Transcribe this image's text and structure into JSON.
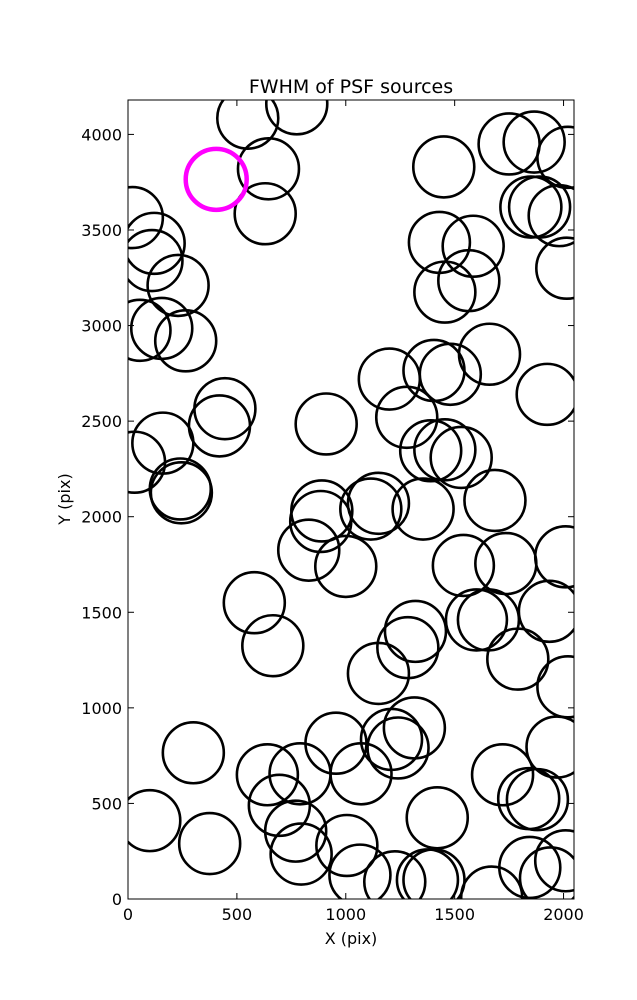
{
  "chart_data": {
    "type": "scatter",
    "marker": "open-circle",
    "title": "FWHM of PSF sources",
    "xlabel": "X (pix)",
    "ylabel": "Y (pix)",
    "xlim": [
      0,
      2048
    ],
    "ylim": [
      0,
      4180
    ],
    "xticks": [
      "0",
      "500",
      "1000",
      "1500",
      "2000"
    ],
    "yticks": [
      "0",
      "500",
      "1000",
      "1500",
      "2000",
      "2500",
      "3000",
      "3500",
      "4000"
    ],
    "grid": false,
    "colors": {
      "default": "#000000",
      "highlight": "#ff00ff"
    },
    "marker_radius_pix": 140,
    "highlighted_point": {
      "x": 405,
      "y": 3765
    },
    "points": [
      [
        550,
        4085
      ],
      [
        775,
        4160
      ],
      [
        645,
        3820
      ],
      [
        630,
        3585
      ],
      [
        1450,
        3830
      ],
      [
        1750,
        3950
      ],
      [
        1865,
        3960
      ],
      [
        2020,
        3880
      ],
      [
        1850,
        3620
      ],
      [
        1890,
        3620
      ],
      [
        1980,
        3575
      ],
      [
        20,
        3565
      ],
      [
        120,
        3430
      ],
      [
        110,
        3340
      ],
      [
        230,
        3210
      ],
      [
        1430,
        3435
      ],
      [
        1585,
        3415
      ],
      [
        1565,
        3235
      ],
      [
        1455,
        3175
      ],
      [
        2015,
        3300
      ],
      [
        55,
        2975
      ],
      [
        155,
        2985
      ],
      [
        265,
        2920
      ],
      [
        1200,
        2720
      ],
      [
        1405,
        2765
      ],
      [
        1480,
        2745
      ],
      [
        1660,
        2850
      ],
      [
        445,
        2565
      ],
      [
        420,
        2475
      ],
      [
        160,
        2385
      ],
      [
        910,
        2485
      ],
      [
        1280,
        2520
      ],
      [
        1925,
        2640
      ],
      [
        30,
        2285
      ],
      [
        240,
        2145
      ],
      [
        245,
        2125
      ],
      [
        1390,
        2345
      ],
      [
        1455,
        2350
      ],
      [
        1530,
        2310
      ],
      [
        890,
        2030
      ],
      [
        885,
        1975
      ],
      [
        830,
        1825
      ],
      [
        1000,
        1740
      ],
      [
        1150,
        2070
      ],
      [
        1115,
        2040
      ],
      [
        1355,
        2040
      ],
      [
        1685,
        2085
      ],
      [
        2010,
        1790
      ],
      [
        1540,
        1745
      ],
      [
        1735,
        1755
      ],
      [
        580,
        1550
      ],
      [
        665,
        1325
      ],
      [
        1320,
        1400
      ],
      [
        1285,
        1315
      ],
      [
        1150,
        1180
      ],
      [
        1600,
        1460
      ],
      [
        1655,
        1460
      ],
      [
        1935,
        1505
      ],
      [
        1790,
        1255
      ],
      [
        2020,
        1110
      ],
      [
        300,
        765
      ],
      [
        955,
        815
      ],
      [
        640,
        650
      ],
      [
        790,
        655
      ],
      [
        1070,
        655
      ],
      [
        1210,
        835
      ],
      [
        1315,
        895
      ],
      [
        1240,
        790
      ],
      [
        1720,
        650
      ],
      [
        1970,
        795
      ],
      [
        695,
        490
      ],
      [
        770,
        355
      ],
      [
        100,
        410
      ],
      [
        375,
        290
      ],
      [
        795,
        235
      ],
      [
        1005,
        280
      ],
      [
        1065,
        125
      ],
      [
        1225,
        90
      ],
      [
        1420,
        425
      ],
      [
        1840,
        525
      ],
      [
        1880,
        520
      ],
      [
        1375,
        100
      ],
      [
        1405,
        100
      ],
      [
        1670,
        10
      ],
      [
        1845,
        165
      ],
      [
        1940,
        110
      ],
      [
        2010,
        200
      ]
    ]
  }
}
